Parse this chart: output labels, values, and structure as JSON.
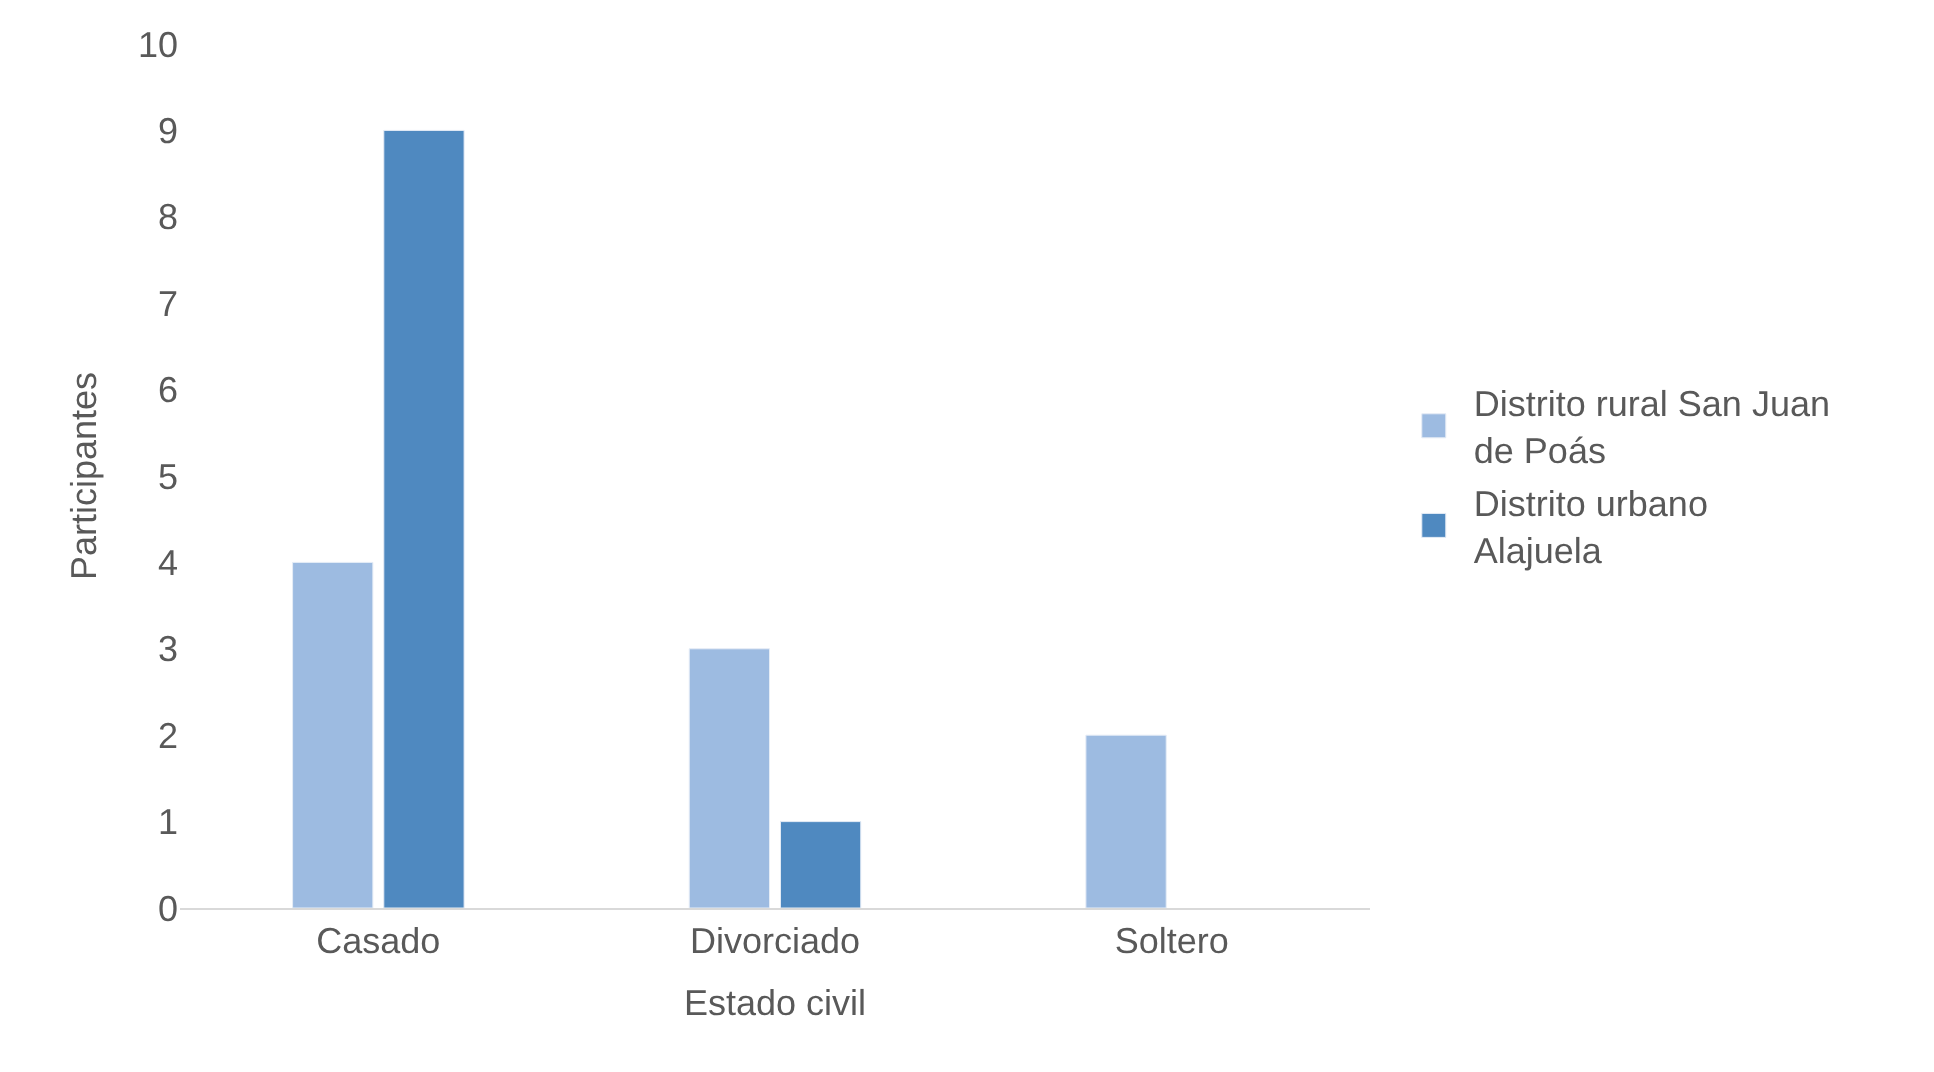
{
  "chart_data": {
    "type": "bar",
    "xlabel": "Estado civil",
    "ylabel": "Participantes",
    "categories": [
      "Casado",
      "Divorciado",
      "Soltero"
    ],
    "series": [
      {
        "name": "Distrito rural San Juan de Poás",
        "color": "#9dbbe1",
        "values": [
          4,
          3,
          2
        ]
      },
      {
        "name": "Distrito urbano Alajuela",
        "color": "#4f89c0",
        "values": [
          9,
          1,
          null
        ]
      }
    ],
    "ylim": [
      0,
      10
    ],
    "yticks": [
      0,
      1,
      2,
      3,
      4,
      5,
      6,
      7,
      8,
      9,
      10
    ],
    "grid": false,
    "legend": "right"
  }
}
